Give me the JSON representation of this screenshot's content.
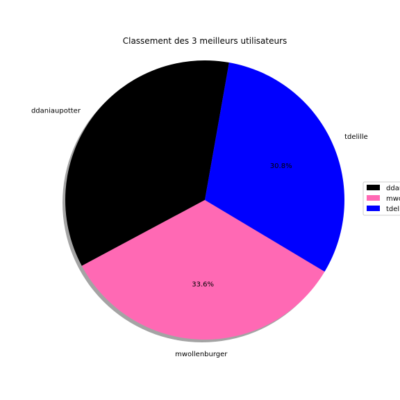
{
  "chart_data": {
    "type": "pie",
    "title": "Classement des 3 meilleurs utilisateurs",
    "slices": [
      {
        "label": "ddaniaupotter",
        "value": 35.6,
        "percent_label": "",
        "color": "#000000"
      },
      {
        "label": "mwollenburger",
        "value": 33.6,
        "percent_label": "33.6%",
        "color": "#ff69b4"
      },
      {
        "label": "tdelille",
        "value": 30.8,
        "percent_label": "30.8%",
        "color": "#0000ff"
      }
    ],
    "shadow": true,
    "legend": {
      "placement": "right",
      "entries": [
        "ddan",
        "mwo",
        "tdeli"
      ]
    }
  }
}
